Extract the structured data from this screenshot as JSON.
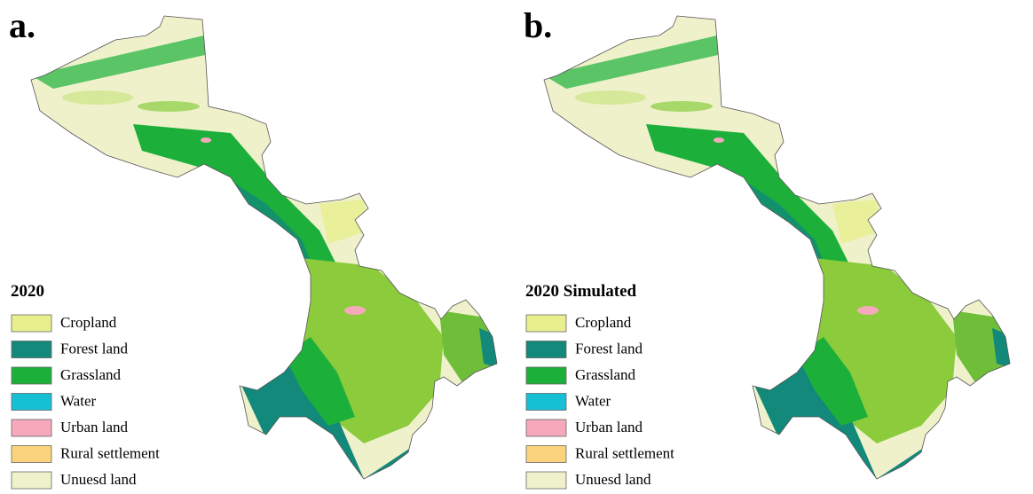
{
  "panels": [
    {
      "label": "a.",
      "legend_title": "2020",
      "legend": [
        {
          "name": "Cropland",
          "color": "#e9ef8c"
        },
        {
          "name": "Forest land",
          "color": "#12897a"
        },
        {
          "name": "Grassland",
          "color": "#1cb03a"
        },
        {
          "name": "Water",
          "color": "#16c0d4"
        },
        {
          "name": "Urban land",
          "color": "#f6a9ba"
        },
        {
          "name": "Rural settlement",
          "color": "#fbd37c"
        },
        {
          "name": "Unuesd land",
          "color": "#eff1cb"
        }
      ]
    },
    {
      "label": "b.",
      "legend_title": "2020 Simulated",
      "legend": [
        {
          "name": "Cropland",
          "color": "#e9ef8c"
        },
        {
          "name": "Forest land",
          "color": "#12897a"
        },
        {
          "name": "Grassland",
          "color": "#1cb03a"
        },
        {
          "name": "Water",
          "color": "#16c0d4"
        },
        {
          "name": "Urban land",
          "color": "#f6a9ba"
        },
        {
          "name": "Rural settlement",
          "color": "#fbd37c"
        },
        {
          "name": "Unuesd land",
          "color": "#eff1cb"
        }
      ]
    }
  ]
}
